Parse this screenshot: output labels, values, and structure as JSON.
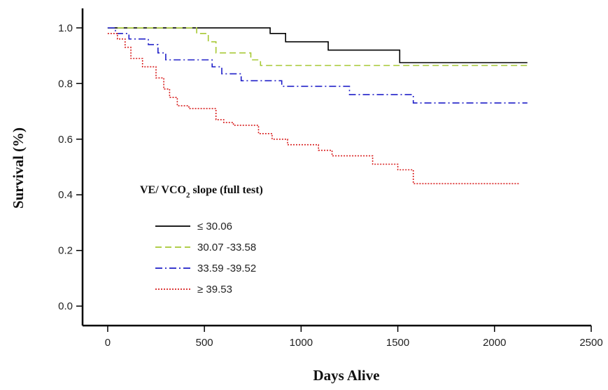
{
  "chart_data": {
    "type": "line",
    "xlabel": "Days Alive",
    "ylabel": "Survival (%)",
    "xlim": [
      -130,
      2500
    ],
    "ylim": [
      -0.07,
      1.07
    ],
    "x_ticks": [
      0,
      500,
      1000,
      1500,
      2000,
      2500
    ],
    "y_ticks": [
      0.0,
      0.2,
      0.4,
      0.6,
      0.8,
      1.0
    ],
    "x_tick_labels": [
      "0",
      "500",
      "1000",
      "1500",
      "2000",
      "2500"
    ],
    "y_tick_labels": [
      "0.0",
      "0.2",
      "0.4",
      "0.6",
      "0.8",
      "1.0"
    ],
    "legend": {
      "title_main": "VE/ VCO",
      "title_sub": "2",
      "title_rest": " slope (full test)",
      "placement": "lower-left"
    },
    "series": [
      {
        "name": "≤ 30.06",
        "color": "#000000",
        "dash": "solid",
        "x": [
          0,
          840,
          840,
          920,
          920,
          1140,
          1140,
          1510,
          1510,
          2170
        ],
        "y": [
          1.0,
          1.0,
          0.98,
          0.98,
          0.95,
          0.95,
          0.92,
          0.92,
          0.875,
          0.875
        ]
      },
      {
        "name": "30.07 -33.58",
        "color": "#a6c832",
        "dash": "dashed",
        "x": [
          0,
          460,
          460,
          520,
          520,
          560,
          560,
          740,
          740,
          790,
          790,
          2170
        ],
        "y": [
          1.0,
          1.0,
          0.98,
          0.98,
          0.95,
          0.95,
          0.91,
          0.91,
          0.885,
          0.885,
          0.865,
          0.865
        ]
      },
      {
        "name": "33.59 -39.52",
        "color": "#1f1fc8",
        "dash": "dashdot",
        "x": [
          0,
          40,
          40,
          110,
          110,
          210,
          210,
          260,
          260,
          300,
          300,
          540,
          540,
          590,
          590,
          690,
          690,
          900,
          900,
          1250,
          1250,
          1580,
          1580,
          2170
        ],
        "y": [
          1.0,
          1.0,
          0.98,
          0.98,
          0.96,
          0.96,
          0.94,
          0.94,
          0.91,
          0.91,
          0.885,
          0.885,
          0.86,
          0.86,
          0.835,
          0.835,
          0.81,
          0.81,
          0.79,
          0.79,
          0.76,
          0.76,
          0.73,
          0.73
        ]
      },
      {
        "name": "≥ 39.53",
        "color": "#d81e1e",
        "dash": "dotted",
        "x": [
          0,
          50,
          50,
          90,
          90,
          120,
          120,
          180,
          180,
          250,
          250,
          290,
          290,
          320,
          320,
          360,
          360,
          420,
          420,
          560,
          560,
          600,
          600,
          650,
          650,
          780,
          780,
          850,
          850,
          930,
          930,
          1090,
          1090,
          1160,
          1160,
          1370,
          1370,
          1500,
          1500,
          1580,
          1580,
          2130
        ],
        "y": [
          0.98,
          0.98,
          0.96,
          0.96,
          0.93,
          0.93,
          0.89,
          0.89,
          0.86,
          0.86,
          0.82,
          0.82,
          0.78,
          0.78,
          0.75,
          0.75,
          0.72,
          0.72,
          0.71,
          0.71,
          0.67,
          0.67,
          0.66,
          0.66,
          0.65,
          0.65,
          0.62,
          0.62,
          0.6,
          0.6,
          0.58,
          0.58,
          0.56,
          0.56,
          0.54,
          0.54,
          0.51,
          0.51,
          0.49,
          0.49,
          0.44,
          0.44
        ]
      }
    ]
  }
}
